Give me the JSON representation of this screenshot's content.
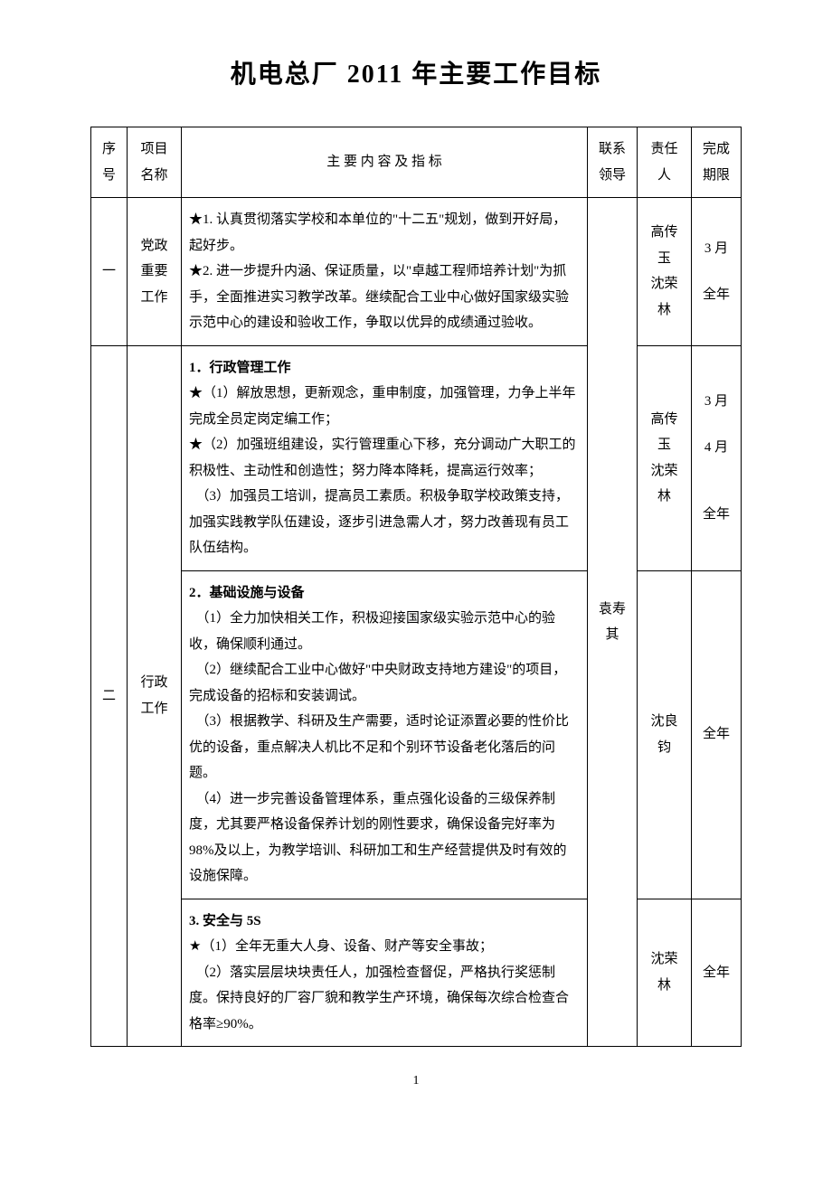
{
  "title": "机电总厂 2011 年主要工作目标",
  "headers": {
    "seq": "序号",
    "project": "项目名称",
    "content": "主 要 内 容 及 指 标",
    "leader": "联系领导",
    "owner": "责任人",
    "deadline": "完成期限"
  },
  "leader_merged": "袁寿其",
  "rows": [
    {
      "seq": "一",
      "project": "党政重要工作",
      "content_head": "",
      "content_lines": [
        "★1. 认真贯彻落实学校和本单位的\"十二五\"规划，做到开好局，起好步。",
        "★2. 进一步提升内涵、保证质量，以\"卓越工程师培养计划\"为抓手，全面推进实习教学改革。继续配合工业中心做好国家级实验示范中心的建设和验收工作，争取以优异的成绩通过验收。"
      ],
      "owner_lines": [
        "高传玉",
        "沈荣林"
      ],
      "deadline_lines": [
        "3 月",
        "",
        "全年"
      ]
    },
    {
      "seq": "二",
      "project": "行政工作",
      "subrows": [
        {
          "head": "1．行政管理工作",
          "lines": [
            "★（1）解放思想，更新观念，重申制度，加强管理，力争上半年完成全员定岗定编工作；",
            "★（2）加强班组建设，实行管理重心下移，充分调动广大职工的积极性、主动性和创造性；努力降本降耗，提高运行效率；",
            "　（3）加强员工培训，提高员工素质。积极争取学校政策支持，加强实践教学队伍建设，逐步引进急需人才，努力改善现有员工队伍结构。"
          ],
          "owner_lines": [
            "高传玉",
            "沈荣林"
          ],
          "deadline_lines": [
            "3 月",
            "",
            "4 月",
            "",
            "",
            "全年"
          ]
        },
        {
          "head": "2．基础设施与设备",
          "lines": [
            "　（1）全力加快相关工作，积极迎接国家级实验示范中心的验收，确保顺利通过。",
            "　（2）继续配合工业中心做好\"中央财政支持地方建设\"的项目，完成设备的招标和安装调试。",
            "　（3）根据教学、科研及生产需要，适时论证添置必要的性价比优的设备，重点解决人机比不足和个别环节设备老化落后的问题。",
            "　（4）进一步完善设备管理体系，重点强化设备的三级保养制度，尤其要严格设备保养计划的刚性要求，确保设备完好率为 98%及以上，为教学培训、科研加工和生产经营提供及时有效的设施保障。"
          ],
          "owner_lines": [
            "沈良钧"
          ],
          "deadline_lines": [
            "全年"
          ]
        },
        {
          "head": "3. 安全与 5S",
          "lines": [
            "★（1）全年无重大人身、设备、财产等安全事故；",
            "　（2）落实层层块块责任人，加强检查督促，严格执行奖惩制度。保持良好的厂容厂貌和教学生产环境，确保每次综合检查合格率≥90%。"
          ],
          "owner_lines": [
            "沈荣林"
          ],
          "deadline_lines": [
            "全年"
          ]
        }
      ]
    }
  ],
  "page_number": "1"
}
